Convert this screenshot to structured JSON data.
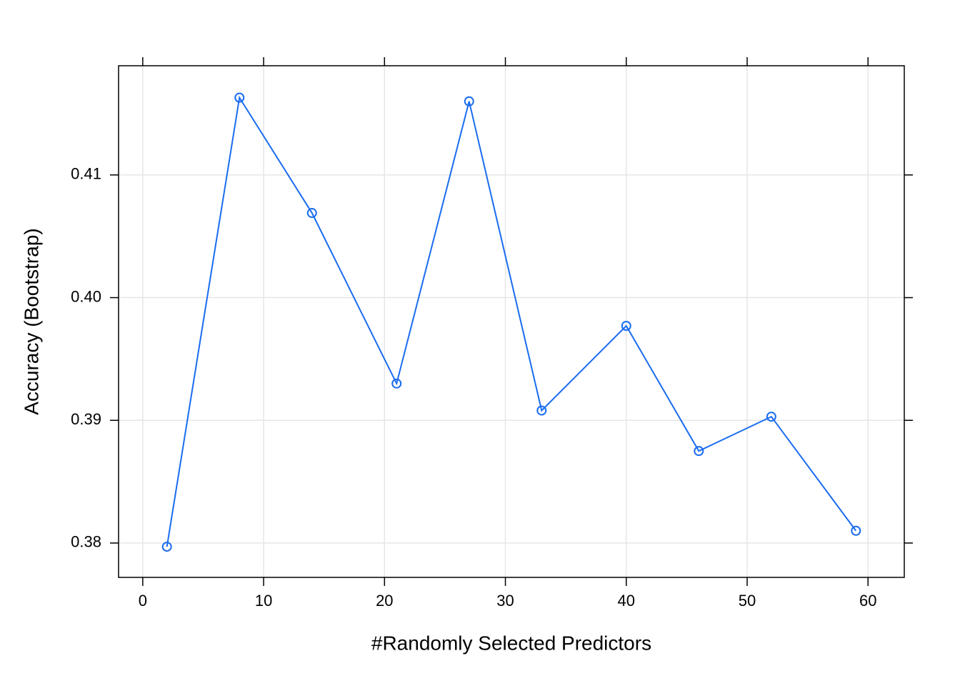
{
  "chart_data": {
    "type": "line",
    "x_label": "#Randomly Selected Predictors",
    "y_label": "Accuracy (Bootstrap)",
    "x": [
      2,
      8,
      14,
      21,
      27,
      33,
      40,
      46,
      52,
      59
    ],
    "series": [
      {
        "color": "#1a6cf0",
        "values": [
          0.3797,
          0.4163,
          0.4069,
          0.393,
          0.416,
          0.3908,
          0.3977,
          0.3875,
          0.3903,
          0.381
        ]
      }
    ],
    "xlim": [
      -2,
      63
    ],
    "ylim": [
      0.3772,
      0.4189
    ],
    "xticks": [
      0,
      10,
      20,
      30,
      40,
      50,
      60
    ],
    "yticks": [
      0.38,
      0.39,
      {
        "value": 0.4,
        "label": "0.40"
      },
      0.41
    ],
    "grid": true,
    "markers": "open-circle"
  }
}
